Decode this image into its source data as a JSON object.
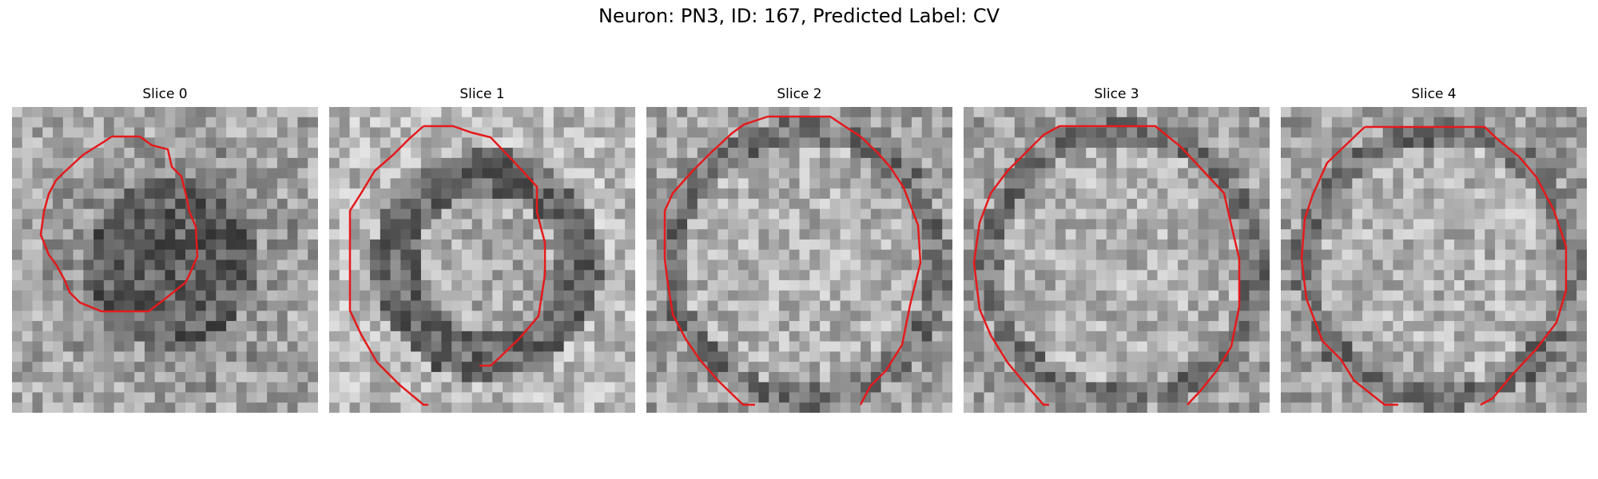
{
  "figure": {
    "title": "Neuron: PN3, ID: 167, Predicted Label: CV",
    "contour_color": "#e41a1c"
  },
  "slices": [
    {
      "label": "Slice 0",
      "core": "dark"
    },
    {
      "label": "Slice 1",
      "core": "ring"
    },
    {
      "label": "Slice 2",
      "core": "light"
    },
    {
      "label": "Slice 3",
      "core": "light"
    },
    {
      "label": "Slice 4",
      "core": "light"
    }
  ]
}
